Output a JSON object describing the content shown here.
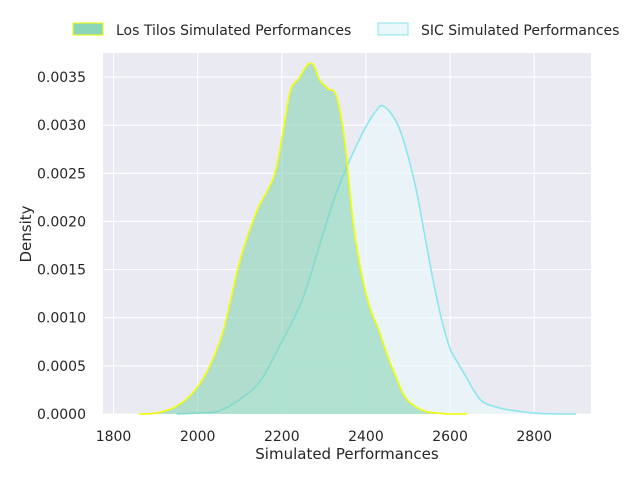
{
  "chart_data": {
    "type": "area",
    "title": "",
    "xlabel": "Simulated Performances",
    "ylabel": "Density",
    "xlim": [
      1775,
      2935
    ],
    "ylim": [
      0,
      0.00375
    ],
    "xticks": [
      1800,
      2000,
      2200,
      2400,
      2600,
      2800
    ],
    "yticks": [
      0,
      0.0005,
      0.001,
      0.0015,
      0.002,
      0.0025,
      0.003,
      0.0035
    ],
    "ytick_labels": [
      "0.0000",
      "0.0005",
      "0.0010",
      "0.0015",
      "0.0020",
      "0.0025",
      "0.0030",
      "0.0035"
    ],
    "grid": true,
    "legend_position": "top",
    "series": [
      {
        "name": "Los Tilos Simulated Performances",
        "fill_color": "#7fd1b0",
        "line_color": "#f2ff00",
        "x": [
          1860,
          1900,
          1940,
          1980,
          2020,
          2060,
          2100,
          2140,
          2180,
          2200,
          2220,
          2240,
          2260,
          2275,
          2290,
          2310,
          2330,
          2350,
          2370,
          2390,
          2410,
          2430,
          2450,
          2470,
          2490,
          2510,
          2540,
          2570,
          2600,
          2640
        ],
        "y": [
          0.0,
          1e-05,
          6e-05,
          0.00018,
          0.00042,
          0.00085,
          0.00158,
          0.0021,
          0.00245,
          0.00285,
          0.00335,
          0.00348,
          0.00362,
          0.00363,
          0.00347,
          0.00338,
          0.0033,
          0.00282,
          0.00198,
          0.00145,
          0.0011,
          0.00088,
          0.00062,
          0.0004,
          0.0002,
          0.0001,
          3e-05,
          1e-05,
          0.0,
          0.0
        ]
      },
      {
        "name": "SIC Simulated Performances",
        "fill_color": "#eaf8fb",
        "line_color": "#8be6ee",
        "x": [
          1950,
          2000,
          2050,
          2100,
          2150,
          2200,
          2250,
          2300,
          2330,
          2360,
          2390,
          2410,
          2430,
          2440,
          2460,
          2480,
          2500,
          2520,
          2540,
          2560,
          2580,
          2600,
          2620,
          2640,
          2660,
          2680,
          2720,
          2760,
          2800,
          2850,
          2900
        ],
        "y": [
          0.0,
          1e-05,
          3e-05,
          0.00015,
          0.00035,
          0.00075,
          0.0012,
          0.0019,
          0.0023,
          0.00262,
          0.0029,
          0.00306,
          0.00318,
          0.0032,
          0.00312,
          0.00296,
          0.00268,
          0.00232,
          0.00185,
          0.00138,
          0.00098,
          0.00068,
          0.00052,
          0.00037,
          0.00022,
          0.00012,
          6e-05,
          3e-05,
          1e-05,
          0.0,
          0.0
        ]
      }
    ]
  }
}
